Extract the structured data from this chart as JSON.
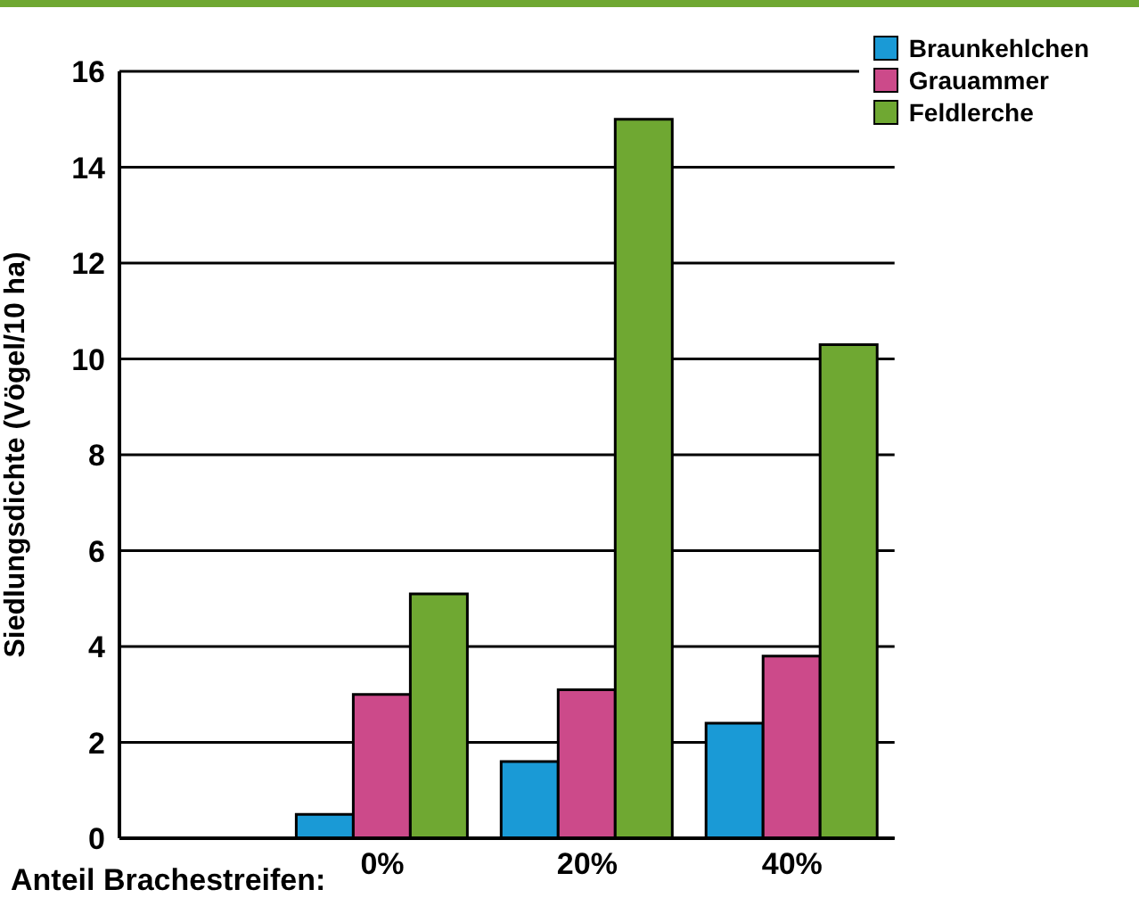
{
  "chart_data": {
    "type": "bar",
    "xlabel": "Anteil Brachestreifen:",
    "ylabel": "Siedlungsdichte (Vögel/10 ha)",
    "categories": [
      "0%",
      "20%",
      "40%"
    ],
    "series": [
      {
        "name": "Braunkehlchen",
        "color": "#1a9ad6",
        "values": [
          0.5,
          1.6,
          2.4
        ]
      },
      {
        "name": "Grauammer",
        "color": "#cc4a8a",
        "values": [
          3.0,
          3.1,
          3.8
        ]
      },
      {
        "name": "Feldlerche",
        "color": "#6fa832",
        "values": [
          5.1,
          15.0,
          10.3
        ]
      }
    ],
    "ylim": [
      0,
      16
    ],
    "yticks": [
      0,
      2,
      4,
      6,
      8,
      10,
      12,
      14,
      16
    ],
    "grid": "y",
    "legend": "top right"
  }
}
